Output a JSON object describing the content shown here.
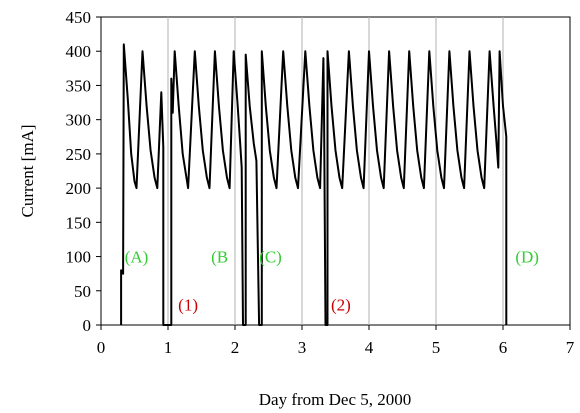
{
  "chart_data": {
    "type": "line",
    "xlabel": "Day from Dec 5, 2000",
    "ylabel": "Current [mA]",
    "xlim": [
      0,
      7
    ],
    "ylim": [
      0,
      450
    ],
    "xticks": [
      0,
      1,
      2,
      3,
      4,
      5,
      6,
      7
    ],
    "yticks": [
      0,
      50,
      100,
      150,
      200,
      250,
      300,
      350,
      400,
      450
    ],
    "grid": true,
    "grid_axis": "x",
    "line_color": "#000000",
    "annotations": [
      {
        "text": "(A)",
        "x": 0.53,
        "y": 100,
        "color": "#33cc33"
      },
      {
        "text": "(B",
        "x": 1.77,
        "y": 100,
        "color": "#33cc33"
      },
      {
        "text": "(C)",
        "x": 2.53,
        "y": 100,
        "color": "#33cc33"
      },
      {
        "text": "(D)",
        "x": 6.36,
        "y": 100,
        "color": "#33cc33"
      },
      {
        "text": "(1)",
        "x": 1.3,
        "y": 30,
        "color": "#cc0000"
      },
      {
        "text": "(2)",
        "x": 3.58,
        "y": 30,
        "color": "#cc0000"
      }
    ],
    "series": [
      {
        "points": [
          [
            0.3,
            0
          ],
          [
            0.3,
            80
          ],
          [
            0.33,
            75
          ],
          [
            0.34,
            410
          ],
          [
            0.4,
            330
          ],
          [
            0.45,
            250
          ],
          [
            0.5,
            210
          ],
          [
            0.53,
            200
          ],
          [
            0.62,
            400
          ],
          [
            0.68,
            320
          ],
          [
            0.74,
            255
          ],
          [
            0.8,
            215
          ],
          [
            0.84,
            200
          ],
          [
            0.9,
            340
          ],
          [
            0.93,
            260
          ],
          [
            0.93,
            190
          ],
          [
            0.93,
            0
          ],
          [
            1.05,
            0
          ],
          [
            1.05,
            360
          ],
          [
            1.07,
            310
          ],
          [
            1.1,
            400
          ],
          [
            1.16,
            320
          ],
          [
            1.22,
            250
          ],
          [
            1.3,
            200
          ],
          [
            1.4,
            400
          ],
          [
            1.46,
            320
          ],
          [
            1.52,
            255
          ],
          [
            1.58,
            215
          ],
          [
            1.62,
            200
          ],
          [
            1.7,
            400
          ],
          [
            1.76,
            320
          ],
          [
            1.82,
            255
          ],
          [
            1.88,
            215
          ],
          [
            1.92,
            200
          ],
          [
            1.98,
            400
          ],
          [
            2.04,
            320
          ],
          [
            2.08,
            260
          ],
          [
            2.1,
            230
          ],
          [
            2.12,
            0
          ],
          [
            2.16,
            0
          ],
          [
            2.16,
            395
          ],
          [
            2.22,
            320
          ],
          [
            2.28,
            265
          ],
          [
            2.32,
            240
          ],
          [
            2.36,
            0
          ],
          [
            2.4,
            0
          ],
          [
            2.4,
            400
          ],
          [
            2.46,
            320
          ],
          [
            2.52,
            255
          ],
          [
            2.58,
            215
          ],
          [
            2.62,
            200
          ],
          [
            2.72,
            400
          ],
          [
            2.78,
            320
          ],
          [
            2.84,
            255
          ],
          [
            2.9,
            215
          ],
          [
            2.94,
            200
          ],
          [
            3.05,
            400
          ],
          [
            3.11,
            320
          ],
          [
            3.17,
            255
          ],
          [
            3.23,
            215
          ],
          [
            3.27,
            200
          ],
          [
            3.32,
            390
          ],
          [
            3.33,
            300
          ],
          [
            3.35,
            0
          ],
          [
            3.38,
            0
          ],
          [
            3.38,
            400
          ],
          [
            3.44,
            320
          ],
          [
            3.5,
            255
          ],
          [
            3.56,
            215
          ],
          [
            3.6,
            200
          ],
          [
            3.7,
            400
          ],
          [
            3.76,
            320
          ],
          [
            3.82,
            255
          ],
          [
            3.88,
            215
          ],
          [
            3.92,
            200
          ],
          [
            4.0,
            400
          ],
          [
            4.06,
            320
          ],
          [
            4.12,
            255
          ],
          [
            4.18,
            215
          ],
          [
            4.22,
            200
          ],
          [
            4.3,
            400
          ],
          [
            4.36,
            320
          ],
          [
            4.42,
            255
          ],
          [
            4.48,
            215
          ],
          [
            4.52,
            200
          ],
          [
            4.6,
            400
          ],
          [
            4.66,
            320
          ],
          [
            4.72,
            255
          ],
          [
            4.78,
            215
          ],
          [
            4.82,
            200
          ],
          [
            4.9,
            400
          ],
          [
            4.96,
            320
          ],
          [
            5.02,
            255
          ],
          [
            5.08,
            215
          ],
          [
            5.12,
            200
          ],
          [
            5.2,
            400
          ],
          [
            5.26,
            320
          ],
          [
            5.32,
            255
          ],
          [
            5.38,
            215
          ],
          [
            5.42,
            200
          ],
          [
            5.5,
            400
          ],
          [
            5.56,
            320
          ],
          [
            5.62,
            255
          ],
          [
            5.68,
            215
          ],
          [
            5.72,
            200
          ],
          [
            5.8,
            400
          ],
          [
            5.86,
            320
          ],
          [
            5.9,
            270
          ],
          [
            5.93,
            230
          ],
          [
            5.95,
            400
          ],
          [
            6.0,
            320
          ],
          [
            6.05,
            275
          ],
          [
            6.05,
            0
          ]
        ]
      }
    ]
  }
}
